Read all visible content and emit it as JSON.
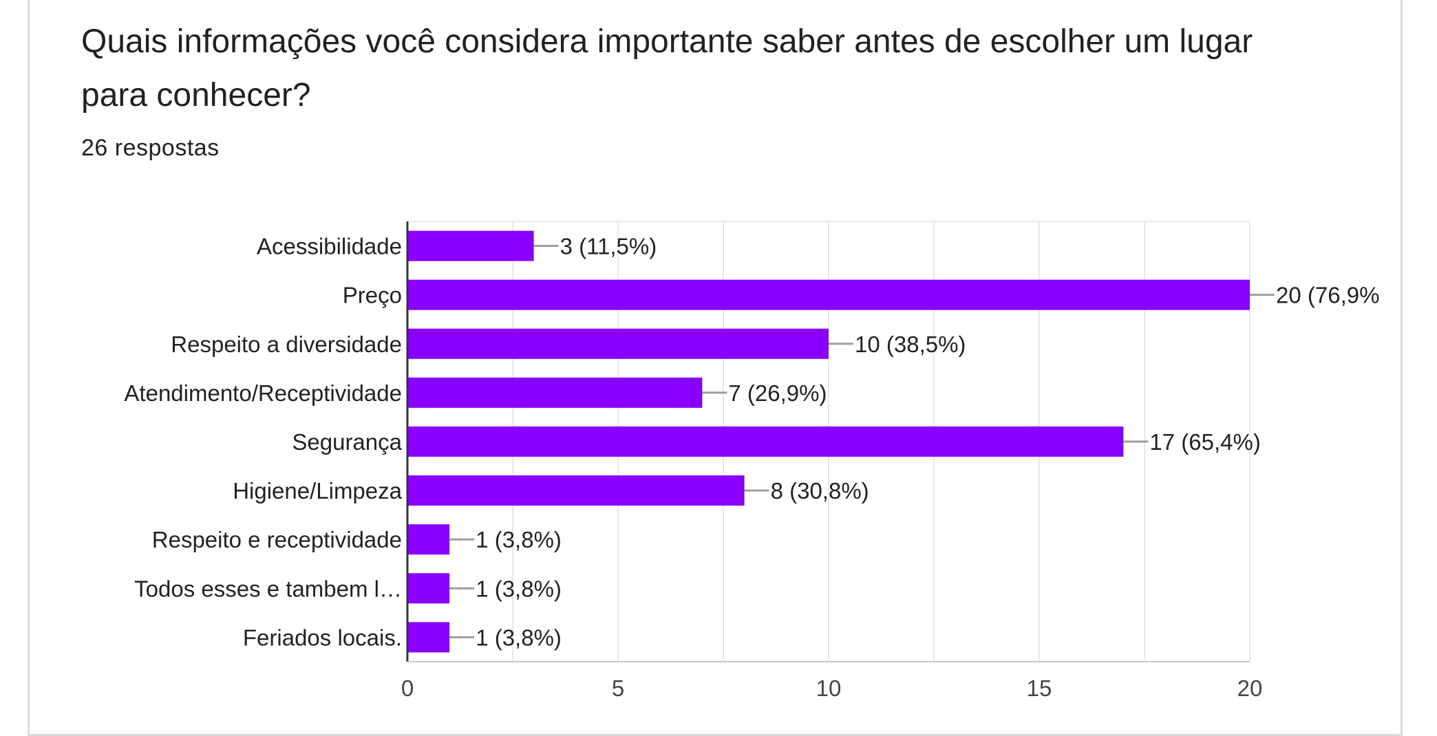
{
  "question": {
    "title": "Quais informações você considera importante saber antes de escolher um lugar para conhecer?",
    "response_count": "26 respostas"
  },
  "colors": {
    "bar": "#8a00ff",
    "grid": "#e8e8e8",
    "axis": "#333333",
    "leader": "#9e9e9e",
    "card_border": "#dadce0"
  },
  "chart_data": {
    "type": "bar",
    "orientation": "horizontal",
    "categories": [
      "Acessibilidade",
      "Preço",
      "Respeito a diversidade",
      "Atendimento/Receptividade",
      "Segurança",
      "Higiene/Limpeza",
      "Respeito e receptividade",
      "Todos esses e tambem l…",
      "Feriados locais."
    ],
    "values": [
      3,
      20,
      10,
      7,
      17,
      8,
      1,
      1,
      1
    ],
    "value_labels": [
      "3 (11,5%)",
      "20 (76,9%",
      "10 (38,5%)",
      "7 (26,9%)",
      "17 (65,4%)",
      "8 (30,8%)",
      "1 (3,8%)",
      "1 (3,8%)",
      "1 (3,8%)"
    ],
    "xlim": [
      0,
      20
    ],
    "xticks": [
      0,
      5,
      10,
      15,
      20
    ],
    "grid": true,
    "legend": "none",
    "title": "",
    "xlabel": "",
    "ylabel": ""
  }
}
